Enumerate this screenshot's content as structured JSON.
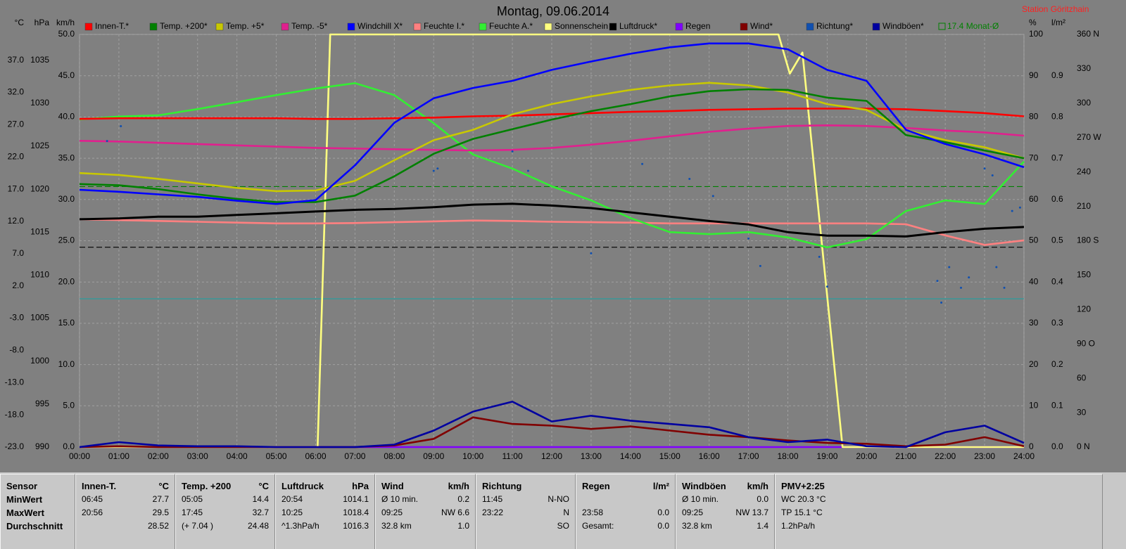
{
  "chart_data": {
    "type": "line",
    "title": "Montag, 09.06.2014",
    "station": "Station Göritzhain",
    "grid": true,
    "grid_axis": 2,
    "xlim": [
      0,
      24
    ],
    "xticks": [
      {
        "value": 0,
        "label": "00:00"
      },
      {
        "value": 1,
        "label": "01:00"
      },
      {
        "value": 2,
        "label": "02:00"
      },
      {
        "value": 3,
        "label": "03:00"
      },
      {
        "value": 4,
        "label": "04:00"
      },
      {
        "value": 5,
        "label": "05:00"
      },
      {
        "value": 6,
        "label": "06:00"
      },
      {
        "value": 7,
        "label": "07:00"
      },
      {
        "value": 8,
        "label": "08:00"
      },
      {
        "value": 9,
        "label": "09:00"
      },
      {
        "value": 10,
        "label": "10:00"
      },
      {
        "value": 11,
        "label": "11:00"
      },
      {
        "value": 12,
        "label": "12:00"
      },
      {
        "value": 13,
        "label": "13:00"
      },
      {
        "value": 14,
        "label": "14:00"
      },
      {
        "value": 15,
        "label": "15:00"
      },
      {
        "value": 16,
        "label": "16:00"
      },
      {
        "value": 17,
        "label": "17:00"
      },
      {
        "value": 18,
        "label": "18:00"
      },
      {
        "value": 19,
        "label": "19:00"
      },
      {
        "value": 20,
        "label": "20:00"
      },
      {
        "value": 21,
        "label": "21:00"
      },
      {
        "value": 22,
        "label": "22:00"
      },
      {
        "value": 23,
        "label": "23:00"
      },
      {
        "value": 24,
        "label": "24:00"
      }
    ],
    "axes": [
      {
        "unit": "°C",
        "side": "left",
        "ylim": [
          -23,
          41
        ],
        "yticks": [
          {
            "value": -23,
            "label": "-23.0"
          },
          {
            "value": -18,
            "label": "-18.0"
          },
          {
            "value": -13,
            "label": "-13.0"
          },
          {
            "value": -8,
            "label": "-8.0"
          },
          {
            "value": -3,
            "label": "-3.0"
          },
          {
            "value": 2,
            "label": "2.0"
          },
          {
            "value": 7,
            "label": "7.0"
          },
          {
            "value": 12,
            "label": "12.0"
          },
          {
            "value": 17,
            "label": "17.0"
          },
          {
            "value": 22,
            "label": "22.0"
          },
          {
            "value": 27,
            "label": "27.0"
          },
          {
            "value": 32,
            "label": "32.0"
          },
          {
            "value": 37,
            "label": "37.0"
          }
        ]
      },
      {
        "unit": "hPa",
        "side": "left",
        "ylim": [
          990,
          1038
        ],
        "yticks": [
          990,
          995,
          1000,
          1005,
          1010,
          1015,
          1020,
          1025,
          1030,
          1035
        ]
      },
      {
        "unit": "km/h",
        "side": "left",
        "ylim": [
          0,
          50
        ],
        "yticks": [
          {
            "value": 0,
            "label": "0.0"
          },
          {
            "value": 5,
            "label": "5.0"
          },
          {
            "value": 10,
            "label": "10.0"
          },
          {
            "value": 15,
            "label": "15.0"
          },
          {
            "value": 20,
            "label": "20.0"
          },
          {
            "value": 25,
            "label": "25.0"
          },
          {
            "value": 30,
            "label": "30.0"
          },
          {
            "value": 35,
            "label": "35.0"
          },
          {
            "value": 40,
            "label": "40.0"
          },
          {
            "value": 45,
            "label": "45.0"
          },
          {
            "value": 50,
            "label": "50.0"
          }
        ]
      },
      {
        "unit": "%",
        "side": "right",
        "ylim": [
          0,
          100
        ],
        "yticks": [
          0,
          10,
          20,
          30,
          40,
          50,
          60,
          70,
          80,
          90,
          100
        ]
      },
      {
        "unit": "l/m²",
        "side": "right",
        "ylim": [
          0,
          1
        ],
        "yticks": [
          {
            "value": 0,
            "label": "0.0"
          },
          0.1,
          0.2,
          0.3,
          0.4,
          0.5,
          0.6,
          0.7,
          0.8,
          0.9
        ]
      },
      {
        "side": "right",
        "ylim": [
          0,
          360
        ],
        "yticks": [
          {
            "value": 0,
            "label": "0 N"
          },
          30,
          60,
          {
            "value": 90,
            "label": "90 O"
          },
          120,
          150,
          {
            "value": 180,
            "label": "180 S"
          },
          210,
          240,
          {
            "value": 270,
            "label": "270 W"
          },
          300,
          330,
          {
            "value": 360,
            "label": "360 N"
          }
        ]
      }
    ],
    "x": [
      0,
      1,
      2,
      3,
      4,
      5,
      6,
      7,
      8,
      9,
      10,
      11,
      12,
      13,
      14,
      15,
      16,
      17,
      18,
      19,
      20,
      21,
      22,
      23,
      24
    ],
    "series": [
      {
        "name": "Innen-T.*",
        "color": "#ff0000",
        "axis": 0,
        "values": [
          27.9,
          28.0,
          28.0,
          28.0,
          28.0,
          28.0,
          27.9,
          27.9,
          28.0,
          28.1,
          28.3,
          28.4,
          28.6,
          28.8,
          29.0,
          29.1,
          29.3,
          29.4,
          29.5,
          29.5,
          29.5,
          29.4,
          29.1,
          28.8,
          28.3
        ]
      },
      {
        "name": "Temp. +200*",
        "color": "#008000",
        "axis": 0,
        "values": [
          17.8,
          17.6,
          17.0,
          16.2,
          15.5,
          15.0,
          15.0,
          16.0,
          19.0,
          22.5,
          24.8,
          26.3,
          27.8,
          29.1,
          30.2,
          31.4,
          32.2,
          32.5,
          32.4,
          31.2,
          30.7,
          25.4,
          24.3,
          23.0,
          21.8
        ]
      },
      {
        "name": "Temp. +5*",
        "color": "#c8c800",
        "axis": 0,
        "values": [
          19.5,
          19.2,
          18.6,
          17.9,
          17.2,
          16.7,
          16.8,
          18.3,
          21.5,
          24.6,
          26.2,
          28.6,
          30.2,
          31.4,
          32.4,
          33.1,
          33.5,
          33.1,
          32.0,
          30.2,
          29.3,
          26.2,
          24.6,
          23.5,
          21.8
        ]
      },
      {
        "name": "Temp. -5*",
        "color": "#e0208e",
        "axis": 0,
        "values": [
          24.5,
          24.4,
          24.2,
          24.0,
          23.8,
          23.6,
          23.4,
          23.3,
          23.2,
          23.1,
          23.0,
          23.1,
          23.4,
          23.9,
          24.5,
          25.2,
          25.9,
          26.4,
          26.8,
          26.9,
          26.8,
          26.5,
          26.1,
          25.8,
          25.3
        ]
      },
      {
        "name": "Windchill X*",
        "color": "#0000ff",
        "axis": 0,
        "values": [
          16.9,
          16.6,
          16.2,
          15.8,
          15.2,
          14.7,
          15.3,
          20.7,
          27.3,
          31.1,
          32.7,
          33.8,
          35.5,
          36.8,
          38.0,
          39.0,
          39.6,
          39.6,
          38.7,
          35.5,
          33.8,
          26.2,
          24.0,
          22.4,
          20.4
        ]
      },
      {
        "name": "Feuchte I.*",
        "color": "#ff8080",
        "axis": 3,
        "values": [
          55.2,
          55.0,
          54.8,
          54.6,
          54.4,
          54.2,
          54.2,
          54.3,
          54.5,
          54.7,
          54.9,
          54.8,
          54.6,
          54.5,
          54.4,
          54.2,
          54.2,
          54.2,
          54.2,
          54.2,
          54.2,
          54.0,
          51.3,
          49.0,
          50.1
        ]
      },
      {
        "name": "Feuchte A.*",
        "color": "#33ee33",
        "axis": 3,
        "values": [
          79.4,
          80.1,
          80.4,
          81.9,
          83.6,
          85.3,
          86.9,
          88.2,
          85.3,
          78.5,
          70.9,
          67.5,
          63.2,
          59.8,
          55.5,
          52.1,
          51.6,
          52.1,
          50.8,
          48.4,
          50.4,
          57.2,
          59.8,
          58.9,
          69.2
        ]
      },
      {
        "name": "Sonnenschein",
        "color": "#ffff80",
        "axis": 3,
        "x": [
          0,
          6.05,
          6.37,
          17.76,
          18.05,
          18.37,
          19.39,
          24
        ],
        "values": [
          0,
          0,
          100,
          100,
          90.5,
          95.6,
          0,
          0
        ]
      },
      {
        "name": "Luftdruck*",
        "color": "#000000",
        "axis": 1,
        "values": [
          1016.5,
          1016.6,
          1016.8,
          1016.8,
          1017.0,
          1017.2,
          1017.4,
          1017.6,
          1017.7,
          1017.9,
          1018.2,
          1018.3,
          1018.1,
          1017.8,
          1017.3,
          1016.8,
          1016.3,
          1015.9,
          1015.0,
          1014.6,
          1014.6,
          1014.5,
          1015.0,
          1015.4,
          1015.6
        ]
      },
      {
        "name": "Regen",
        "color": "#8000ff",
        "axis": 4,
        "values": [
          0,
          0,
          0,
          0,
          0,
          0,
          0,
          0,
          0,
          0,
          0,
          0,
          0,
          0,
          0,
          0,
          0,
          0,
          0,
          0,
          0,
          0,
          0,
          0,
          0
        ]
      },
      {
        "name": "Wind*",
        "color": "#800000",
        "axis": 2,
        "values": [
          0,
          0.1,
          0,
          0,
          0,
          0,
          0,
          0,
          0.2,
          1.0,
          3.6,
          2.8,
          2.6,
          2.2,
          2.5,
          2.0,
          1.5,
          1.2,
          0.8,
          0.5,
          0.4,
          0.1,
          0.3,
          1.2,
          0.1
        ]
      },
      {
        "name": "Richtung*",
        "color": "#1050b0",
        "axis": 5,
        "type": "scatter",
        "x": [
          0.7,
          1.05,
          9.0,
          9.1,
          11.0,
          11.4,
          13.0,
          14.3,
          15.5,
          16.1,
          17.0,
          17.3,
          18.8,
          19.0,
          21.8,
          21.9,
          22.1,
          22.4,
          22.6,
          23.0,
          23.2,
          23.3,
          23.5,
          23.7,
          23.9
        ],
        "values": [
          267,
          280,
          241,
          243,
          258,
          241,
          169,
          247,
          234,
          219,
          182,
          158,
          166,
          140,
          145,
          126,
          157,
          139,
          148,
          243,
          237,
          157,
          139,
          206,
          209
        ]
      },
      {
        "name": "Windböen*",
        "color": "#0000a0",
        "axis": 2,
        "values": [
          0,
          0.6,
          0.2,
          0.1,
          0.1,
          0,
          0,
          0,
          0.3,
          2.0,
          4.3,
          5.5,
          3.1,
          3.8,
          3.2,
          2.8,
          2.4,
          1.2,
          0.6,
          0.9,
          0.1,
          0,
          1.8,
          2.6,
          0.5
        ]
      }
    ],
    "reference_lines": [
      {
        "axis": 0,
        "value": 17.4,
        "color": "#008000",
        "dash": true
      },
      {
        "axis": 1,
        "value": 1013.25,
        "color": "#000000",
        "dash": true
      },
      {
        "axis": 0,
        "value": 0,
        "color": "#20a0a0",
        "dash": false
      }
    ],
    "monthly_mean_label": "17.4 Monat-Ø",
    "monthly_mean_color": "#008000"
  },
  "stats": {
    "columns": [
      {
        "title": "Sensor",
        "rows": [
          {
            "left": "MinWert"
          },
          {
            "left": "MaxWert"
          },
          {
            "left": "Durchschnitt"
          }
        ]
      },
      {
        "title": "Innen-T.",
        "unit": "°C",
        "rows": [
          {
            "left": "06:45",
            "right": "27.7"
          },
          {
            "left": "20:56",
            "right": "29.5"
          },
          {
            "right": "28.52"
          }
        ]
      },
      {
        "title": "Temp. +200",
        "unit": "°C",
        "rows": [
          {
            "left": "05:05",
            "right": "14.4"
          },
          {
            "left": "17:45",
            "right": "32.7"
          },
          {
            "left": "(+ 7.04 )",
            "right": "24.48"
          }
        ]
      },
      {
        "title": "Luftdruck",
        "unit": "hPa",
        "rows": [
          {
            "left": "20:54",
            "right": "1014.1"
          },
          {
            "left": "10:25",
            "right": "1018.4"
          },
          {
            "left": "^1.3hPa/h",
            "right": "1016.3"
          }
        ]
      },
      {
        "title": "Wind",
        "unit": "km/h",
        "rows": [
          {
            "left": "Ø 10 min.",
            "right": "0.2"
          },
          {
            "left": "09:25",
            "right": "NW 6.6"
          },
          {
            "left": "32.8 km",
            "right": "1.0"
          }
        ]
      },
      {
        "title": "Richtung",
        "rows": [
          {
            "left": "11:45",
            "right": "N-NO"
          },
          {
            "left": "23:22",
            "right": "N"
          },
          {
            "right": "SO"
          }
        ]
      },
      {
        "title": "Regen",
        "unit": "l/m²",
        "rows": [
          {},
          {
            "left": "23:58",
            "right": "0.0"
          },
          {
            "left": "Gesamt:",
            "right": "0.0"
          }
        ]
      },
      {
        "title": "Windböen",
        "unit": "km/h",
        "rows": [
          {
            "left": "Ø 10 min.",
            "right": "0.0"
          },
          {
            "left": "09:25",
            "right": "NW 13.7"
          },
          {
            "left": "32.8 km",
            "right": "1.4"
          }
        ]
      },
      {
        "title": "PMV+2:25",
        "rows": [
          {
            "left": "WC 20.3 °C"
          },
          {
            "left": "TP 15.1 °C"
          },
          {
            "left": "1.2hPa/h"
          }
        ]
      }
    ]
  }
}
